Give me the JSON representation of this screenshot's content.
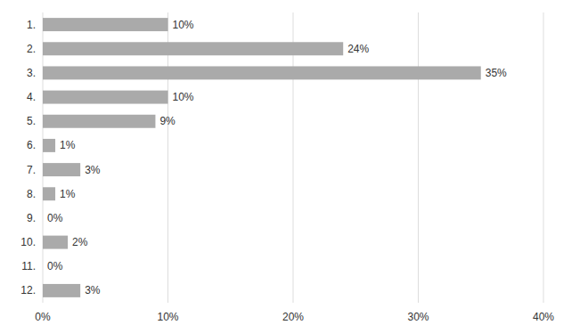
{
  "chart_data": {
    "type": "bar",
    "orientation": "horizontal",
    "categories": [
      "1.",
      "2.",
      "3.",
      "4.",
      "5.",
      "6.",
      "7.",
      "8.",
      "9.",
      "10.",
      "11.",
      "12."
    ],
    "values": [
      10,
      24,
      35,
      10,
      9,
      1,
      3,
      1,
      0,
      2,
      0,
      3
    ],
    "value_labels": [
      "10%",
      "24%",
      "35%",
      "10%",
      "9%",
      "1%",
      "3%",
      "1%",
      "0%",
      "2%",
      "0%",
      "3%"
    ],
    "data_labels": true,
    "color": "#aaaaaa",
    "xlim": [
      0,
      40
    ],
    "xticks": [
      {
        "value": 0,
        "label": "0%"
      },
      {
        "value": 10,
        "label": "10%"
      },
      {
        "value": 20,
        "label": "20%"
      },
      {
        "value": 30,
        "label": "30%"
      },
      {
        "value": 40,
        "label": "40%"
      }
    ],
    "grid": true
  }
}
